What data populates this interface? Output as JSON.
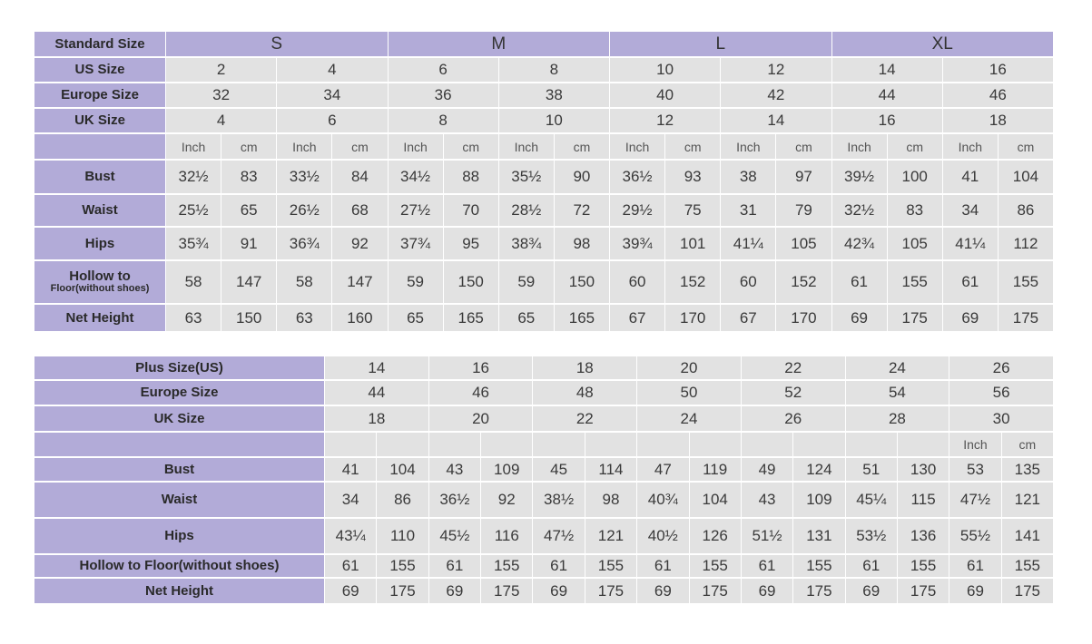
{
  "standard_table": {
    "header_label": "Standard Size",
    "groups": [
      "S",
      "M",
      "L",
      "XL"
    ],
    "size_rows": [
      {
        "label": "US Size",
        "values": [
          "2",
          "4",
          "6",
          "8",
          "10",
          "12",
          "14",
          "16"
        ]
      },
      {
        "label": "Europe Size",
        "values": [
          "32",
          "34",
          "36",
          "38",
          "40",
          "42",
          "44",
          "46"
        ]
      },
      {
        "label": "UK Size",
        "values": [
          "4",
          "6",
          "8",
          "10",
          "12",
          "14",
          "16",
          "18"
        ]
      }
    ],
    "units": [
      "Inch",
      "cm",
      "Inch",
      "cm",
      "Inch",
      "cm",
      "Inch",
      "cm",
      "Inch",
      "cm",
      "Inch",
      "cm",
      "Inch",
      "cm",
      "Inch",
      "cm"
    ],
    "measure_rows": [
      {
        "label": "Bust",
        "values": [
          "32½",
          "83",
          "33½",
          "84",
          "34½",
          "88",
          "35½",
          "90",
          "36½",
          "93",
          "38",
          "97",
          "39½",
          "100",
          "41",
          "104"
        ]
      },
      {
        "label": "Waist",
        "values": [
          "25½",
          "65",
          "26½",
          "68",
          "27½",
          "70",
          "28½",
          "72",
          "29½",
          "75",
          "31",
          "79",
          "32½",
          "83",
          "34",
          "86"
        ]
      },
      {
        "label": "Hips",
        "values": [
          "35¾",
          "91",
          "36¾",
          "92",
          "37¾",
          "95",
          "38¾",
          "98",
          "39¾",
          "101",
          "41¼",
          "105",
          "42¾",
          "105",
          "41¼",
          "112"
        ]
      },
      {
        "label": "Hollow to",
        "label2": "Floor(without shoes)",
        "values": [
          "58",
          "147",
          "58",
          "147",
          "59",
          "150",
          "59",
          "150",
          "60",
          "152",
          "60",
          "152",
          "61",
          "155",
          "61",
          "155"
        ]
      },
      {
        "label": "Net Height",
        "values": [
          "63",
          "150",
          "63",
          "160",
          "65",
          "165",
          "65",
          "165",
          "67",
          "170",
          "67",
          "170",
          "69",
          "175",
          "69",
          "175"
        ]
      }
    ]
  },
  "plus_table": {
    "size_rows": [
      {
        "label": "Plus Size(US)",
        "values": [
          "14",
          "16",
          "18",
          "20",
          "22",
          "24",
          "26"
        ]
      },
      {
        "label": "Europe Size",
        "values": [
          "44",
          "46",
          "48",
          "50",
          "52",
          "54",
          "56"
        ]
      },
      {
        "label": "UK Size",
        "values": [
          "18",
          "20",
          "22",
          "24",
          "26",
          "28",
          "30"
        ]
      }
    ],
    "units": [
      "",
      "",
      "",
      "",
      "",
      "",
      "",
      "",
      "",
      "",
      "",
      "",
      "Inch",
      "cm"
    ],
    "measure_rows": [
      {
        "label": "Bust",
        "values": [
          "41",
          "104",
          "43",
          "109",
          "45",
          "114",
          "47",
          "119",
          "49",
          "124",
          "51",
          "130",
          "53",
          "135"
        ]
      },
      {
        "label": "Waist",
        "values": [
          "34",
          "86",
          "36½",
          "92",
          "38½",
          "98",
          "40¾",
          "104",
          "43",
          "109",
          "45¼",
          "115",
          "47½",
          "121"
        ]
      },
      {
        "label": "Hips",
        "values": [
          "43¼",
          "110",
          "45½",
          "116",
          "47½",
          "121",
          "40½",
          "126",
          "51½",
          "131",
          "53½",
          "136",
          "55½",
          "141"
        ]
      },
      {
        "label": "Hollow to Floor(without shoes)",
        "values": [
          "61",
          "155",
          "61",
          "155",
          "61",
          "155",
          "61",
          "155",
          "61",
          "155",
          "61",
          "155",
          "61",
          "155"
        ]
      },
      {
        "label": "Net Height",
        "values": [
          "69",
          "175",
          "69",
          "175",
          "69",
          "175",
          "69",
          "175",
          "69",
          "175",
          "69",
          "175",
          "69",
          "175"
        ]
      }
    ]
  },
  "colors": {
    "label_bg": "#b2abd8",
    "cell_bg": "#e2e2e2"
  }
}
